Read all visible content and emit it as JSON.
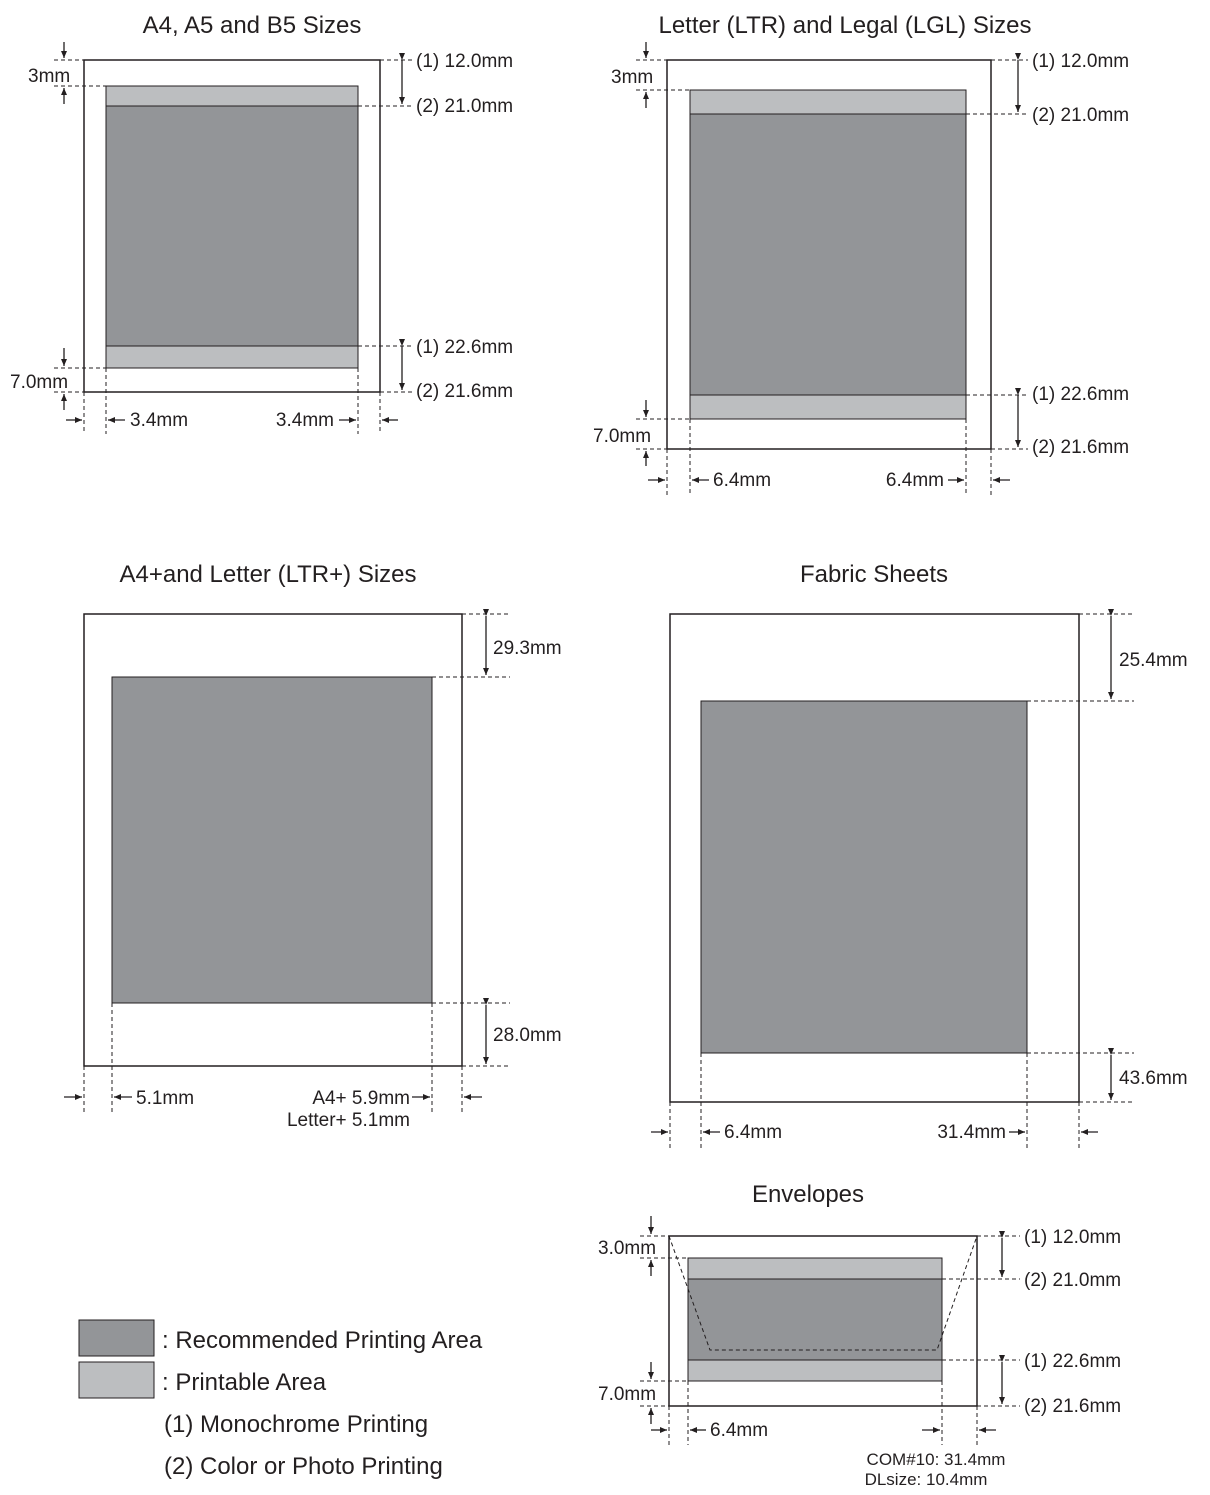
{
  "colors": {
    "recommended_area": "#939598",
    "printable_area": "#bcbec0",
    "line": "#231f20"
  },
  "a4": {
    "title": "A4, A5 and B5 Sizes",
    "top_margin": "3mm",
    "mono_top": "(1) 12.0mm",
    "color_top": "(2) 21.0mm",
    "mono_bottom": "(1) 22.6mm",
    "color_bottom": "(2) 21.6mm",
    "bottom_margin": "7.0mm",
    "left": "3.4mm",
    "right": "3.4mm"
  },
  "letter": {
    "title": "Letter (LTR) and Legal (LGL) Sizes",
    "top_margin": "3mm",
    "mono_top": "(1) 12.0mm",
    "color_top": "(2) 21.0mm",
    "mono_bottom": "(1) 22.6mm",
    "color_bottom": "(2) 21.6mm",
    "bottom_margin": "7.0mm",
    "left": "6.4mm",
    "right": "6.4mm"
  },
  "a4plus": {
    "title": "A4+and Letter (LTR+) Sizes",
    "top": "29.3mm",
    "bottom": "28.0mm",
    "left": "5.1mm",
    "right_a4": "A4+ 5.9mm",
    "right_letter": "Letter+ 5.1mm"
  },
  "fabric": {
    "title": "Fabric Sheets",
    "top": "25.4mm",
    "bottom": "43.6mm",
    "left": "6.4mm",
    "right": "31.4mm"
  },
  "envelopes": {
    "title": "Envelopes",
    "top_margin": "3.0mm",
    "mono_top": "(1) 12.0mm",
    "color_top": "(2) 21.0mm",
    "mono_bottom": "(1) 22.6mm",
    "color_bottom": "(2) 21.6mm",
    "bottom_margin": "7.0mm",
    "left": "6.4mm",
    "right_com": "COM#10: 31.4mm",
    "right_dl": "DLsize: 10.4mm"
  },
  "legend": {
    "recommended": ":  Recommended Printing Area",
    "printable": ":  Printable Area",
    "mono": "(1) Monochrome Printing",
    "color": "(2) Color or Photo Printing"
  }
}
